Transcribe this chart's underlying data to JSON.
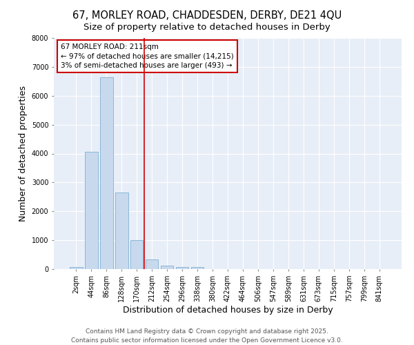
{
  "title_line1": "67, MORLEY ROAD, CHADDESDEN, DERBY, DE21 4QU",
  "title_line2": "Size of property relative to detached houses in Derby",
  "xlabel": "Distribution of detached houses by size in Derby",
  "ylabel": "Number of detached properties",
  "bar_color": "#c8d9ee",
  "bar_edge_color": "#7bafd4",
  "background_color": "#ffffff",
  "plot_bg_color": "#e8eef7",
  "grid_color": "#ffffff",
  "categories": [
    "2sqm",
    "44sqm",
    "86sqm",
    "128sqm",
    "170sqm",
    "212sqm",
    "254sqm",
    "296sqm",
    "338sqm",
    "380sqm",
    "422sqm",
    "464sqm",
    "506sqm",
    "547sqm",
    "589sqm",
    "631sqm",
    "673sqm",
    "715sqm",
    "757sqm",
    "799sqm",
    "841sqm"
  ],
  "values": [
    65,
    4050,
    6640,
    2660,
    1000,
    330,
    115,
    75,
    65,
    0,
    0,
    0,
    0,
    0,
    0,
    0,
    0,
    0,
    0,
    0,
    0
  ],
  "vline_index": 5,
  "vline_color": "#cc0000",
  "annotation_title": "67 MORLEY ROAD: 211sqm",
  "annotation_line1": "← 97% of detached houses are smaller (14,215)",
  "annotation_line2": "3% of semi-detached houses are larger (493) →",
  "annotation_box_color": "#cc0000",
  "ylim": [
    0,
    8000
  ],
  "yticks": [
    0,
    1000,
    2000,
    3000,
    4000,
    5000,
    6000,
    7000,
    8000
  ],
  "footer_line1": "Contains HM Land Registry data © Crown copyright and database right 2025.",
  "footer_line2": "Contains public sector information licensed under the Open Government Licence v3.0.",
  "title_fontsize": 10.5,
  "subtitle_fontsize": 9.5,
  "axis_label_fontsize": 9,
  "tick_fontsize": 7,
  "annotation_fontsize": 7.5,
  "footer_fontsize": 6.5
}
